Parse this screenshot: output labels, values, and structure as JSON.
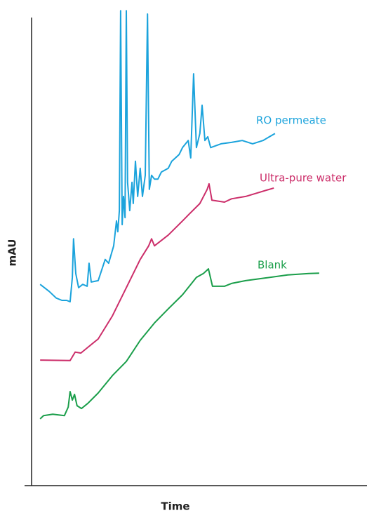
{
  "chart_data": {
    "type": "line",
    "x_label": "Time",
    "y_label": "mAU",
    "xlim": [
      0,
      100
    ],
    "ylim": [
      0,
      100
    ],
    "series": [
      {
        "name": "RO permeate",
        "color": "#1ba3dc",
        "x": [
          2.7,
          5.6,
          7.8,
          9.6,
          11.1,
          12.2,
          12.9,
          13.3,
          14.0,
          14.9,
          16.2,
          17.6,
          18.2,
          18.9,
          21.1,
          23.3,
          24.4,
          26.0,
          26.9,
          27.3,
          27.8,
          28.2,
          28.7,
          29.1,
          29.6,
          30.0,
          30.4,
          31.1,
          31.8,
          32.2,
          32.9,
          33.6,
          34.4,
          35.1,
          36.0,
          36.7,
          37.3,
          38.0,
          38.9,
          40.0,
          41.1,
          43.3,
          44.4,
          46.7,
          47.8,
          49.6,
          50.4,
          51.3,
          52.2,
          53.3,
          54.0,
          54.9,
          55.8,
          56.7,
          60.0,
          63.3,
          66.7,
          70.0,
          73.3,
          77.1
        ],
        "values": [
          42.8,
          41.3,
          39.9,
          39.4,
          39.4,
          39.1,
          44.3,
          52.5,
          45.1,
          42.1,
          42.8,
          42.4,
          47.3,
          43.3,
          43.6,
          48.1,
          47.3,
          51.0,
          56.3,
          54.0,
          58.5,
          101.0,
          55.5,
          61.5,
          57.0,
          101.0,
          64.5,
          58.5,
          64.5,
          60.0,
          69.0,
          61.5,
          67.5,
          61.5,
          66.0,
          100.3,
          63.0,
          66.0,
          65.2,
          65.2,
          66.7,
          67.5,
          69.0,
          70.4,
          71.9,
          73.4,
          69.7,
          87.6,
          71.9,
          74.9,
          80.9,
          73.4,
          74.2,
          71.9,
          72.7,
          73.0,
          73.4,
          72.7,
          73.4,
          74.9
        ]
      },
      {
        "name": "Ultra-pure water",
        "color": "#cc2e6a",
        "x": [
          2.7,
          12.2,
          13.8,
          15.6,
          17.8,
          21.1,
          25.6,
          30.0,
          34.4,
          37.1,
          38.0,
          38.9,
          43.3,
          47.8,
          50.0,
          53.3,
          55.6,
          56.2,
          57.1,
          61.1,
          63.3,
          67.8,
          76.7
        ],
        "values": [
          26.7,
          26.6,
          28.4,
          28.2,
          29.4,
          31.2,
          36.1,
          42.1,
          48.1,
          51.0,
          52.5,
          51.0,
          53.3,
          56.3,
          57.8,
          60.0,
          63.0,
          64.2,
          60.7,
          60.3,
          61.0,
          61.5,
          63.3
        ]
      },
      {
        "name": "Blank",
        "color": "#1a9e4a",
        "x": [
          2.7,
          3.8,
          6.7,
          10.4,
          11.6,
          12.2,
          12.9,
          13.6,
          14.4,
          15.8,
          17.8,
          21.1,
          25.6,
          30.0,
          34.4,
          38.9,
          43.3,
          47.8,
          52.2,
          54.4,
          56.0,
          57.3,
          61.1,
          63.3,
          67.8,
          74.4,
          81.1,
          87.8,
          91.1
        ],
        "values": [
          14.2,
          14.9,
          15.2,
          14.9,
          16.7,
          20.0,
          18.2,
          19.4,
          17.0,
          16.4,
          17.5,
          19.7,
          23.4,
          26.4,
          30.9,
          34.6,
          37.6,
          40.6,
          44.3,
          45.1,
          46.1,
          42.4,
          42.4,
          43.0,
          43.6,
          44.2,
          44.8,
          45.1,
          45.2
        ]
      }
    ]
  }
}
